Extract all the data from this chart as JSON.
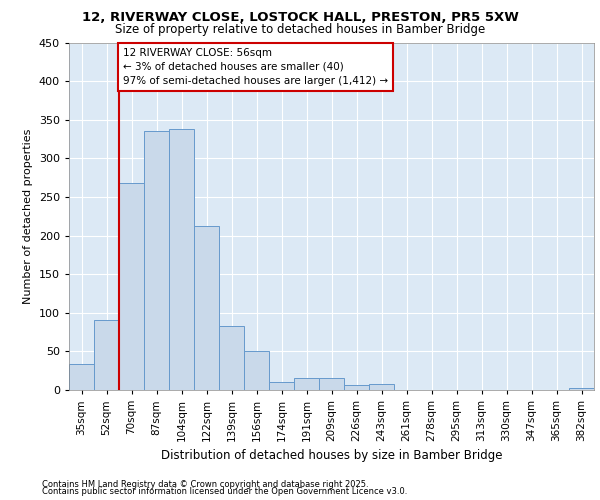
{
  "title1": "12, RIVERWAY CLOSE, LOSTOCK HALL, PRESTON, PR5 5XW",
  "title2": "Size of property relative to detached houses in Bamber Bridge",
  "xlabel": "Distribution of detached houses by size in Bamber Bridge",
  "ylabel": "Number of detached properties",
  "bar_labels": [
    "35sqm",
    "52sqm",
    "70sqm",
    "87sqm",
    "104sqm",
    "122sqm",
    "139sqm",
    "156sqm",
    "174sqm",
    "191sqm",
    "209sqm",
    "226sqm",
    "243sqm",
    "261sqm",
    "278sqm",
    "295sqm",
    "313sqm",
    "330sqm",
    "347sqm",
    "365sqm",
    "382sqm"
  ],
  "bar_values": [
    34,
    91,
    268,
    335,
    338,
    212,
    83,
    51,
    11,
    15,
    15,
    6,
    8,
    0,
    0,
    0,
    0,
    0,
    0,
    0,
    3
  ],
  "bar_color": "#c9d9ea",
  "bar_edge_color": "#6699cc",
  "annotation_text": "12 RIVERWAY CLOSE: 56sqm\n← 3% of detached houses are smaller (40)\n97% of semi-detached houses are larger (1,412) →",
  "annotation_box_color": "white",
  "annotation_box_edge": "#cc0000",
  "red_line_color": "#cc0000",
  "background_color": "#ffffff",
  "plot_bg_color": "#dce9f5",
  "grid_color": "#ffffff",
  "footer1": "Contains HM Land Registry data © Crown copyright and database right 2025.",
  "footer2": "Contains public sector information licensed under the Open Government Licence v3.0.",
  "ylim": [
    0,
    450
  ],
  "yticks": [
    0,
    50,
    100,
    150,
    200,
    250,
    300,
    350,
    400,
    450
  ]
}
